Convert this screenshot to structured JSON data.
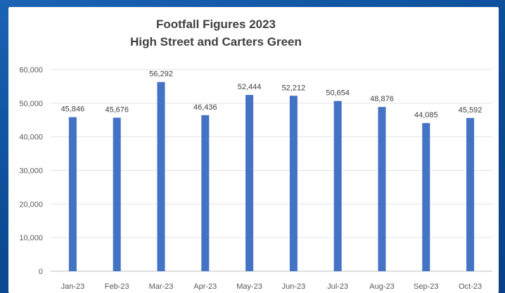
{
  "chart_data": {
    "type": "bar",
    "title": "Footfall Figures 2023",
    "subtitle": "High Street and Carters Green",
    "xlabel": "",
    "ylabel": "",
    "categories": [
      "Jan-23",
      "Feb-23",
      "Mar-23",
      "Apr-23",
      "May-23",
      "Jun-23",
      "Jul-23",
      "Aug-23",
      "Sep-23",
      "Oct-23"
    ],
    "values": [
      45846,
      45676,
      56292,
      46436,
      52444,
      52212,
      50654,
      48876,
      44085,
      45592
    ],
    "value_labels": [
      "45,846",
      "45,676",
      "56,292",
      "46,436",
      "52,444",
      "52,212",
      "50,654",
      "48,876",
      "44,085",
      "45,592"
    ],
    "ylim": [
      0,
      60000
    ],
    "yticks": [
      0,
      10000,
      20000,
      30000,
      40000,
      50000,
      60000
    ],
    "ytick_labels": [
      "0",
      "10,000",
      "20,000",
      "30,000",
      "40,000",
      "50,000",
      "60,000"
    ],
    "grid": true,
    "legend": false,
    "bar_color": "#4472c4"
  }
}
